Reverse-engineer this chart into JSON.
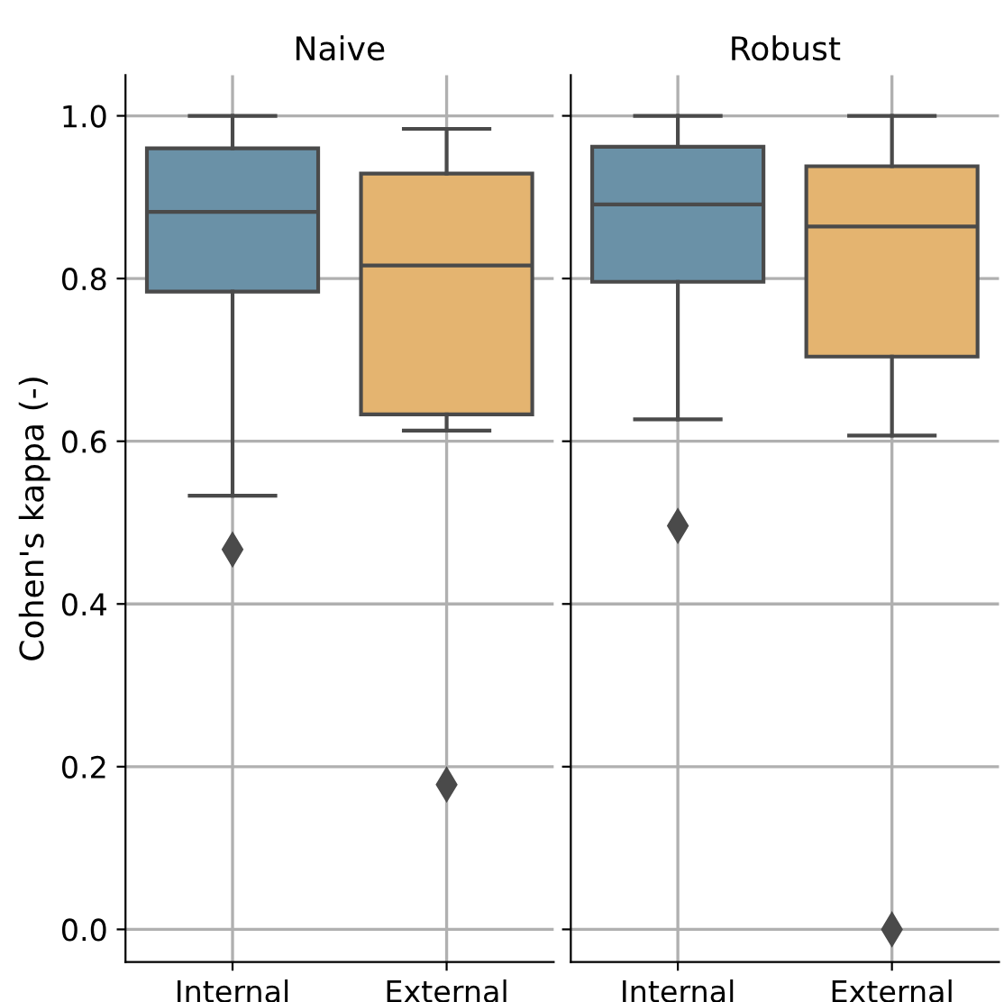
{
  "chart_data": [
    {
      "type": "box",
      "title": "Naive",
      "ylabel": "Cohen's kappa (-)",
      "categories": [
        "Internal",
        "External"
      ],
      "colors": [
        "#6a91a7",
        "#e4b470"
      ],
      "boxes": [
        {
          "low": 0.533,
          "q1": 0.784,
          "median": 0.882,
          "q3": 0.96,
          "high": 1.0,
          "outliers": [
            0.467
          ]
        },
        {
          "low": 0.613,
          "q1": 0.633,
          "median": 0.816,
          "q3": 0.929,
          "high": 0.984,
          "outliers": [
            0.178
          ]
        }
      ],
      "ylim": [
        -0.04,
        1.05
      ],
      "yticks": [
        {
          "value": 0,
          "label": "0.0"
        },
        0.2,
        0.4,
        0.6,
        0.8,
        {
          "value": 1,
          "label": "1.0"
        }
      ],
      "grid": true
    },
    {
      "type": "box",
      "title": "Robust",
      "categories": [
        "Internal",
        "External"
      ],
      "colors": [
        "#6a91a7",
        "#e4b470"
      ],
      "boxes": [
        {
          "low": 0.627,
          "q1": 0.796,
          "median": 0.891,
          "q3": 0.962,
          "high": 1.0,
          "outliers": [
            0.496
          ]
        },
        {
          "low": 0.607,
          "q1": 0.704,
          "median": 0.864,
          "q3": 0.938,
          "high": 1.0,
          "outliers": [
            0.0
          ]
        }
      ],
      "ylim": [
        -0.04,
        1.05
      ],
      "yticks": [
        {
          "value": 0,
          "label": null
        },
        {
          "value": 0.2,
          "label": null
        },
        {
          "value": 0.4,
          "label": null
        },
        {
          "value": 0.6,
          "label": null
        },
        {
          "value": 0.8,
          "label": null
        },
        {
          "value": 1,
          "label": null
        }
      ],
      "grid": true,
      "tick_labels": "x"
    }
  ]
}
